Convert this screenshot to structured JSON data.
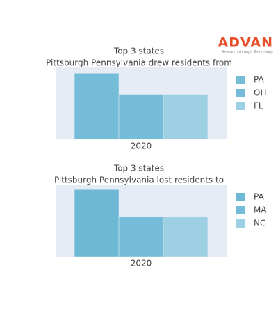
{
  "logo": {
    "name": "ADVAN",
    "tagline": "Research through Technology"
  },
  "chart_data": [
    {
      "type": "bar",
      "title": "Top 3 states",
      "subtitle": "Pittsburgh Pennsylvania drew residents from",
      "categories": [
        "2020"
      ],
      "ylim": [
        0,
        100
      ],
      "series": [
        {
          "name": "PA",
          "color": "#74bcd8",
          "values": [
            92
          ]
        },
        {
          "name": "OH",
          "color": "#74bcd8",
          "values": [
            62
          ]
        },
        {
          "name": "FL",
          "color": "#9dd0e3",
          "values": [
            62
          ]
        }
      ]
    },
    {
      "type": "bar",
      "title": "Top 3 states",
      "subtitle": "Pittsburgh Pennsylvania lost residents to",
      "categories": [
        "2020"
      ],
      "ylim": [
        0,
        100
      ],
      "series": [
        {
          "name": "PA",
          "color": "#6db8d5",
          "values": [
            93
          ]
        },
        {
          "name": "MA",
          "color": "#74bcd8",
          "values": [
            55
          ]
        },
        {
          "name": "NC",
          "color": "#9dd0e3",
          "values": [
            55
          ]
        }
      ]
    }
  ]
}
